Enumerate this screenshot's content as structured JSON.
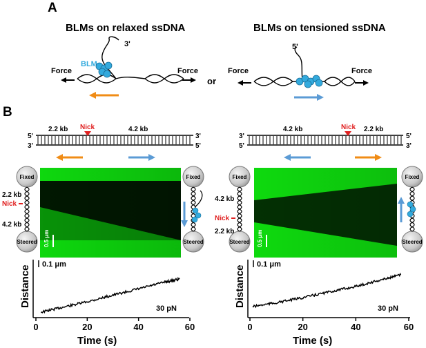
{
  "colors": {
    "bg": "#ffffff",
    "ink": "#000000",
    "orange": "#f08c16",
    "blue": "#5b9bd5",
    "blm": "#33aadd",
    "nick": "#e02020",
    "kymo_green": "#0fe40f",
    "bead_light": "#f4f4f4",
    "bead_dark": "#9a9a9a"
  },
  "panelA": {
    "label": "A",
    "left": {
      "title": "BLMs on relaxed ssDNA",
      "end_label": "3'",
      "protein_label": "BLM",
      "force_left": "Force",
      "force_right": "Force"
    },
    "or": "or",
    "right": {
      "title": "BLMs on tensioned ssDNA",
      "end_label": "5'",
      "force_left": "Force",
      "force_right": "Force"
    }
  },
  "panelB": {
    "label": "B",
    "left": {
      "dna_top_left": "5'",
      "dna_top_right": "3'",
      "dna_bottom_left": "3'",
      "dna_bottom_right": "5'",
      "segment_left": "2.2 kb",
      "segment_right": "4.2 kb",
      "nick": "Nick",
      "bead_top": "Fixed",
      "bead_bottom": "Steered",
      "tether_top_label": "2.2 kb",
      "tether_nick_label": "Nick",
      "tether_bottom_label": "4.2 kb",
      "scalebar": "0.5 μm",
      "plot_scale": "0.1 μm",
      "ylabel": "Distance",
      "xlabel": "Time (s)",
      "force": "30 pN",
      "xticks": [
        "0",
        "20",
        "40",
        "60"
      ]
    },
    "right": {
      "dna_top_left": "3'",
      "dna_top_right": "5'",
      "dna_bottom_left": "5'",
      "dna_bottom_right": "3'",
      "segment_left": "4.2 kb",
      "segment_right": "2.2 kb",
      "nick": "Nick",
      "bead_top": "Fixed",
      "bead_bottom": "Steered",
      "tether_top_label": "4.2 kb",
      "tether_nick_label": "Nick",
      "tether_bottom_label": "2.2 kb",
      "scalebar": "0.5 μm",
      "plot_scale": "0.1 μm",
      "ylabel": "Distance",
      "xlabel": "Time (s)",
      "force": "30 pN",
      "xticks": [
        "0",
        "20",
        "40",
        "60"
      ]
    }
  },
  "chart_data": [
    {
      "type": "line",
      "xlabel": "Time (s)",
      "ylabel": "Distance",
      "xlim": [
        0,
        60
      ],
      "series": [
        {
          "x": [
            2,
            10,
            20,
            30,
            40,
            50,
            56
          ],
          "y": [
            0.0,
            0.11,
            0.25,
            0.41,
            0.56,
            0.72,
            0.8
          ]
        }
      ]
    },
    {
      "type": "line",
      "xlabel": "Time (s)",
      "ylabel": "Distance",
      "xlim": [
        0,
        60
      ],
      "series": [
        {
          "x": [
            1,
            10,
            20,
            30,
            40,
            50,
            57
          ],
          "y": [
            0.0,
            0.1,
            0.23,
            0.38,
            0.52,
            0.7,
            0.82
          ]
        }
      ]
    }
  ]
}
